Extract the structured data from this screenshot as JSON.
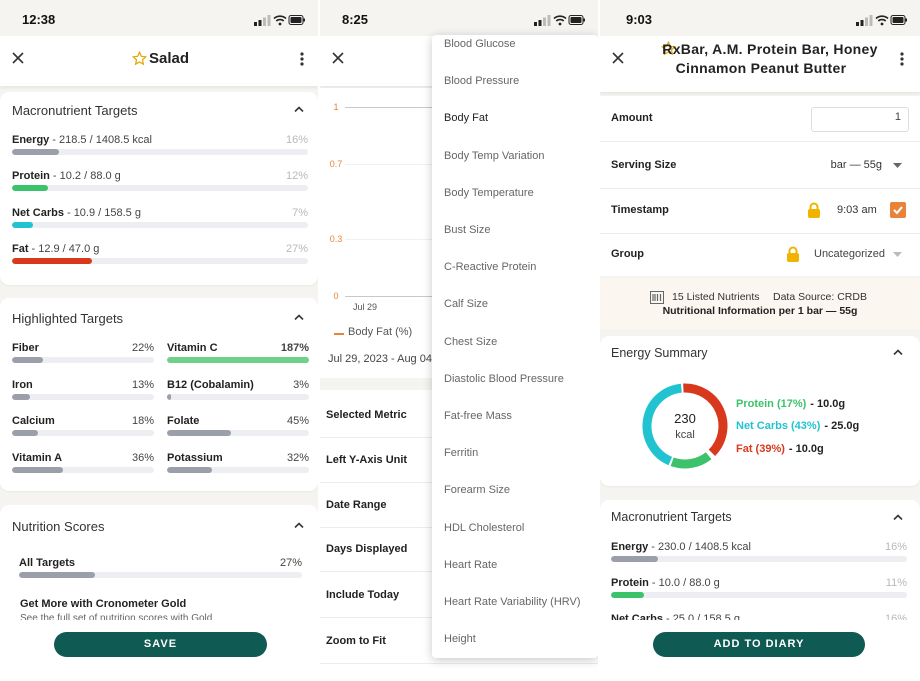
{
  "salad_screen": {
    "time": "12:38",
    "title": "Salad",
    "macro_targets": {
      "title": "Macronutrient Targets",
      "rows": [
        {
          "name": "Energy",
          "detail": "- 218.5 / 1408.5 kcal",
          "percent": 16,
          "percent_label": "16%",
          "color": "#9a9fa9"
        },
        {
          "name": "Protein",
          "detail": "- 10.2 / 88.0 g",
          "percent": 12,
          "percent_label": "12%",
          "color": "#3cc26a"
        },
        {
          "name": "Net Carbs",
          "detail": "- 10.9 / 158.5 g",
          "percent": 7,
          "percent_label": "7%",
          "color": "#22c3d0"
        },
        {
          "name": "Fat",
          "detail": "- 12.9 / 47.0 g",
          "percent": 27,
          "percent_label": "27%",
          "color": "#d8391d"
        }
      ]
    },
    "highlighted_targets": {
      "title": "Highlighted Targets",
      "items": [
        {
          "name": "Fiber",
          "percent": 22,
          "percent_label": "22%",
          "color": "#9a9fa9"
        },
        {
          "name": "Vitamin C",
          "percent": 187,
          "percent_label": "187%",
          "color": "#6fd08a"
        },
        {
          "name": "Iron",
          "percent": 13,
          "percent_label": "13%",
          "color": "#9a9fa9"
        },
        {
          "name": "B12 (Cobalamin)",
          "percent": 3,
          "percent_label": "3%",
          "color": "#9a9fa9"
        },
        {
          "name": "Calcium",
          "percent": 18,
          "percent_label": "18%",
          "color": "#9a9fa9"
        },
        {
          "name": "Folate",
          "percent": 45,
          "percent_label": "45%",
          "color": "#9a9fa9"
        },
        {
          "name": "Vitamin A",
          "percent": 36,
          "percent_label": "36%",
          "color": "#9a9fa9"
        },
        {
          "name": "Potassium",
          "percent": 32,
          "percent_label": "32%",
          "color": "#9a9fa9"
        }
      ]
    },
    "nutrition_scores": {
      "title": "Nutrition Scores",
      "rows": [
        {
          "name": "All Targets",
          "percent": 27,
          "percent_label": "27%",
          "color": "#9a9fa9"
        }
      ],
      "promo_title": "Get More with Cronometer Gold",
      "promo_text": "See the full set of nutrition scores with Gold"
    },
    "button": "SAVE"
  },
  "chart_screen": {
    "time": "8:25",
    "chart": {
      "type": "line",
      "categories": [
        "Jul 29"
      ],
      "series": [
        {
          "name": "Body Fat (%)",
          "color": "#e8833a",
          "values": [
            null
          ]
        }
      ],
      "ylim": [
        0,
        1
      ],
      "yticks": [
        0,
        0.3,
        0.7,
        1
      ]
    },
    "date_range": "Jul 29, 2023 - Aug 04,",
    "settings": [
      "Selected Metric",
      "Left Y-Axis Unit",
      "Date Range",
      "Days Displayed",
      "Include Today",
      "Zoom to Fit"
    ],
    "metric_options": [
      "Blood Glucose",
      "Blood Pressure",
      "Body Fat",
      "Body Temp Variation",
      "Body Temperature",
      "Bust Size",
      "C-Reactive Protein",
      "Calf Size",
      "Chest Size",
      "Diastolic Blood Pressure",
      "Fat-free Mass",
      "Ferritin",
      "Forearm Size",
      "HDL Cholesterol",
      "Heart Rate",
      "Heart Rate Variability (HRV)",
      "Height"
    ],
    "selected_option": 2
  },
  "food_screen": {
    "time": "9:03",
    "title": "RxBar, A.M. Protein Bar, Honey Cinnamon Peanut Butter",
    "fields": [
      {
        "label": "Amount",
        "value": "1"
      },
      {
        "label": "Serving Size",
        "value": "bar — 55g"
      },
      {
        "label": "Timestamp",
        "value": "9:03 am"
      },
      {
        "label": "Group",
        "value": "Uncategorized"
      }
    ],
    "info": {
      "nutrients": "15 Listed Nutrients",
      "source": "Data Source: CRDB",
      "per": "Nutritional Information per 1 bar — 55g"
    },
    "energy_summary": {
      "title": "Energy Summary",
      "chart": {
        "type": "donut",
        "total": 230,
        "unit": "kcal",
        "segments": [
          {
            "label": "Protein (17%)",
            "value": 17,
            "amount": "- 10.0g",
            "color": "#3cc26a"
          },
          {
            "label": "Net Carbs (43%)",
            "value": 43,
            "amount": "- 25.0g",
            "color": "#22c3d0"
          },
          {
            "label": "Fat (39%)",
            "value": 39,
            "amount": "- 10.0g",
            "color": "#d8391d"
          }
        ]
      }
    },
    "macro_targets": {
      "title": "Macronutrient Targets",
      "rows": [
        {
          "name": "Energy",
          "detail": "- 230.0 / 1408.5 kcal",
          "percent": 16,
          "percent_label": "16%",
          "color": "#9a9fa9"
        },
        {
          "name": "Protein",
          "detail": "- 10.0 / 88.0 g",
          "percent": 11,
          "percent_label": "11%",
          "color": "#3cc26a"
        },
        {
          "name": "Net Carbs",
          "detail": "- 25.0 / 158.5 g",
          "percent": 16,
          "percent_label": "16%",
          "color": "#22c3d0"
        }
      ]
    },
    "button": "ADD TO DIARY"
  }
}
